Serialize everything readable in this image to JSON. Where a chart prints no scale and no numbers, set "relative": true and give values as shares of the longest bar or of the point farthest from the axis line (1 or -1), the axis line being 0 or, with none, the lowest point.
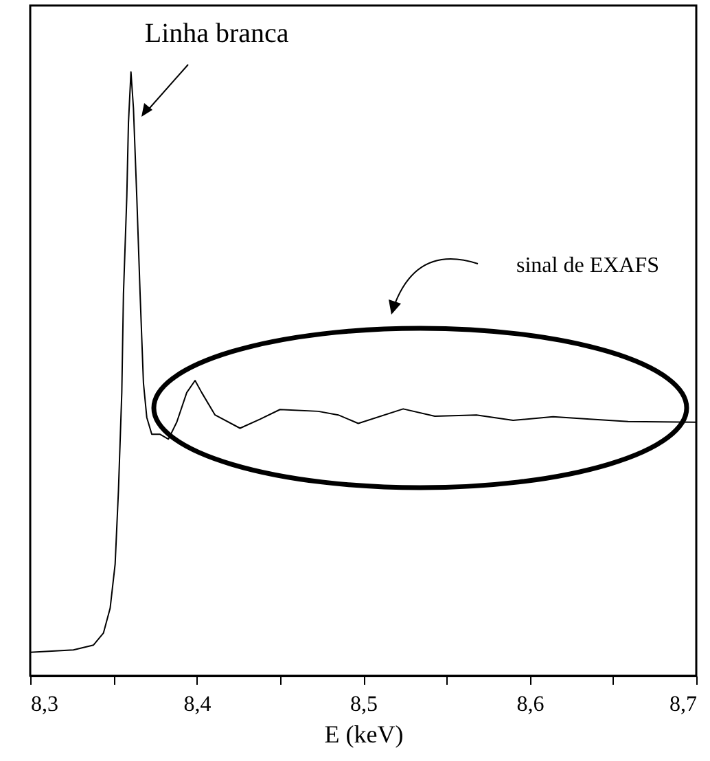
{
  "chart_data": {
    "type": "line",
    "relative": true,
    "xlabel": "E (keV)",
    "xlim": [
      8.3,
      8.7
    ],
    "xticks": [
      {
        "value": 8.3,
        "label": "8,3"
      },
      {
        "value": 8.35,
        "label": null
      },
      {
        "value": 8.4,
        "label": "8,4"
      },
      {
        "value": 8.45,
        "label": null
      },
      {
        "value": 8.5,
        "label": "8,5"
      },
      {
        "value": 8.55,
        "label": null
      },
      {
        "value": 8.6,
        "label": "8,6"
      },
      {
        "value": 8.65,
        "label": null
      },
      {
        "value": 8.7,
        "label": "8,7"
      }
    ],
    "annotations": [
      {
        "text": "Linha branca",
        "x": 8.3605,
        "y": 1.0
      },
      "sinal de EXAFS"
    ],
    "grid": false,
    "marker": "none",
    "line_style": "solid",
    "series": [
      {
        "color": "#000000",
        "x": [
          8.3,
          8.326,
          8.338,
          8.344,
          8.348,
          8.351,
          8.353,
          8.355,
          8.356,
          8.358,
          8.359,
          8.3605,
          8.362,
          8.364,
          8.366,
          8.368,
          8.37,
          8.373,
          8.378,
          8.383,
          8.388,
          8.394,
          8.399,
          8.403,
          8.411,
          8.426,
          8.438,
          8.45,
          8.473,
          8.485,
          8.497,
          8.524,
          8.543,
          8.568,
          8.59,
          8.614,
          8.636,
          8.659,
          8.7
        ],
        "values": [
          0.039,
          0.043,
          0.051,
          0.071,
          0.112,
          0.185,
          0.307,
          0.469,
          0.632,
          0.793,
          0.916,
          1.0,
          0.94,
          0.793,
          0.632,
          0.485,
          0.428,
          0.4,
          0.4,
          0.392,
          0.42,
          0.469,
          0.489,
          0.469,
          0.432,
          0.41,
          0.425,
          0.441,
          0.438,
          0.432,
          0.418,
          0.442,
          0.43,
          0.432,
          0.423,
          0.429,
          0.425,
          0.421,
          0.42
        ]
      }
    ]
  }
}
